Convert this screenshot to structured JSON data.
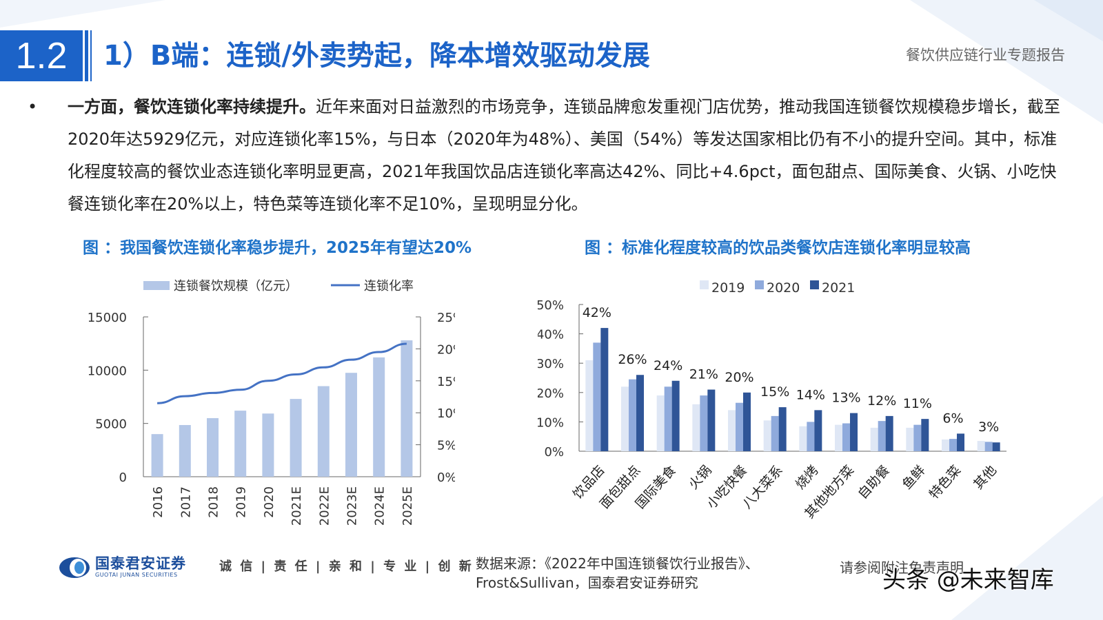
{
  "header": {
    "section_number": "1.2",
    "title": "1）B端：连锁/外卖势起，降本增效驱动发展",
    "report_name": "餐饮供应链行业专题报告"
  },
  "body": {
    "bullet": "•",
    "lead": "一方面，餐饮连锁化率持续提升。",
    "text": "近年来面对日益激烈的市场竞争，连锁品牌愈发重视门店优势，推动我国连锁餐饮规模稳步增长，截至2020年达5929亿元，对应连锁化率15%，与日本（2020年为48%）、美国（54%）等发达国家相比仍有不小的提升空间。其中，标准化程度较高的餐饮业态连锁化率明显更高，2021年我国饮品店连锁化率高达42%、同比+4.6pct，面包甜点、国际美食、火锅、小吃快餐连锁化率在20%以上，特色菜等连锁化率不足10%，呈现明显分化。"
  },
  "figures": {
    "left_title": "图 ：我国餐饮连锁化率稳步提升，2025年有望达20%",
    "right_title": "图 ：标准化程度较高的饮品类餐饮店连锁化率明显较高"
  },
  "chart_data": [
    {
      "type": "bar",
      "categories": [
        "2016",
        "2017",
        "2018",
        "2019",
        "2020",
        "2021E",
        "2022E",
        "2023E",
        "2024E",
        "2025E"
      ],
      "series": [
        {
          "name": "连锁餐饮规模（亿元）",
          "type": "bar",
          "axis": "left",
          "color": "#b4c7e7",
          "values": [
            4000,
            4850,
            5500,
            6200,
            5929,
            7300,
            8500,
            9750,
            11200,
            12800
          ]
        },
        {
          "name": "连锁化率",
          "type": "line",
          "axis": "right",
          "color": "#4472c4",
          "values": [
            0.115,
            0.126,
            0.131,
            0.136,
            0.15,
            0.16,
            0.171,
            0.183,
            0.195,
            0.208
          ]
        }
      ],
      "y_left": {
        "min": 0,
        "max": 15000,
        "ticks": [
          "0",
          "5000",
          "10000",
          "15000"
        ]
      },
      "y_right": {
        "min": 0,
        "max": 0.25,
        "ticks": [
          "0%",
          "5%",
          "10%",
          "15%",
          "20%",
          "25%"
        ]
      },
      "legend_position": "top",
      "grid": false
    },
    {
      "type": "bar",
      "categories": [
        "饮品店",
        "面包甜点",
        "国际美食",
        "火锅",
        "小吃快餐",
        "八大菜系",
        "烧烤",
        "其他地方菜",
        "自助餐",
        "鱼鲜",
        "特色菜",
        "其他"
      ],
      "series": [
        {
          "name": "2019",
          "color": "#dfe7f5",
          "values": [
            0.31,
            0.22,
            0.19,
            0.16,
            0.14,
            0.105,
            0.085,
            0.09,
            0.08,
            0.08,
            0.04,
            0.035
          ]
        },
        {
          "name": "2020",
          "color": "#8faadc",
          "values": [
            0.37,
            0.245,
            0.22,
            0.19,
            0.165,
            0.12,
            0.1,
            0.095,
            0.103,
            0.09,
            0.042,
            0.032
          ]
        },
        {
          "name": "2021",
          "color": "#2f5597",
          "values": [
            0.42,
            0.26,
            0.24,
            0.21,
            0.2,
            0.15,
            0.14,
            0.13,
            0.12,
            0.11,
            0.06,
            0.03
          ]
        }
      ],
      "data_labels": [
        "42%",
        "26%",
        "24%",
        "21%",
        "20%",
        "15%",
        "14%",
        "13%",
        "12%",
        "11%",
        "6%",
        "3%"
      ],
      "y": {
        "min": 0,
        "max": 0.5,
        "ticks": [
          "0%",
          "10%",
          "20%",
          "30%",
          "40%",
          "50%"
        ]
      },
      "legend_position": "top",
      "grid": false
    }
  ],
  "footer": {
    "logo_cn": "国泰君安证券",
    "logo_en": "GUOTAI JUNAN SECURITIES",
    "slogan": "诚 信 | 责 任 | 亲 和 | 专 业 | 创 新",
    "source_line1": "数据来源：《2022年中国连锁餐饮行业报告》、",
    "source_line2": "Frost&Sullivan，国泰君安证券研究",
    "disclaimer": "请参阅附注免责声明",
    "watermark": "头条 @未来智库"
  }
}
